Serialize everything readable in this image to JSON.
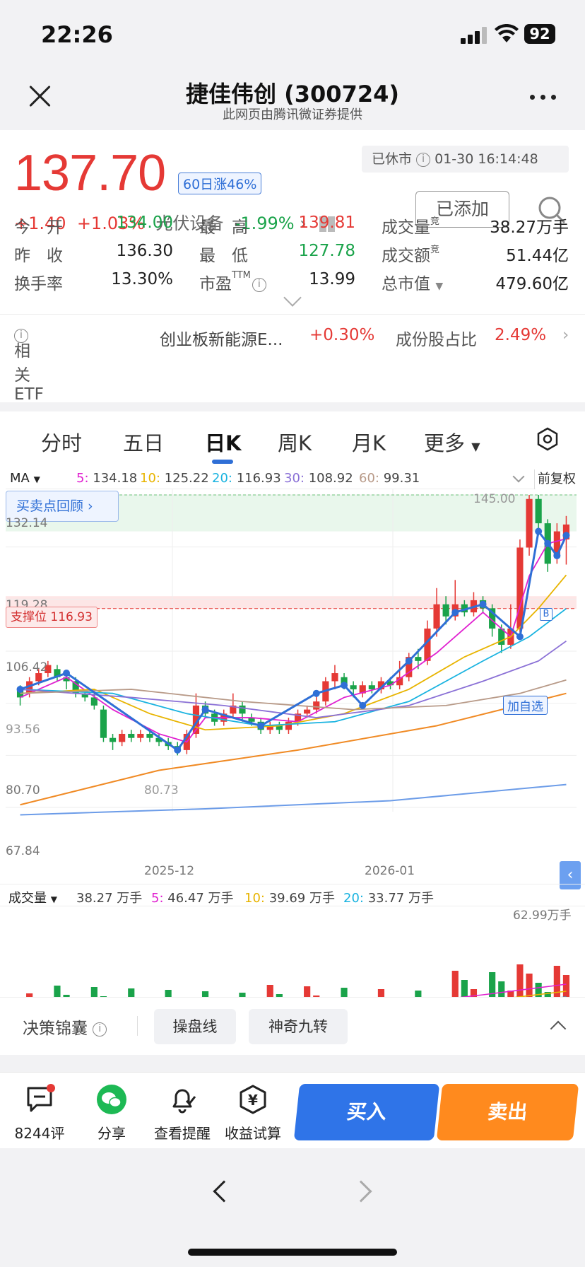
{
  "status": {
    "time": "22:26",
    "battery": "92"
  },
  "nav": {
    "title": "捷佳伟创 (300724)",
    "subtitle": "此网页由腾讯微证券提供"
  },
  "quote": {
    "price": "137.70",
    "badge": "60日涨46%",
    "market_status": "已休市",
    "market_time": "01-30 16:14:48",
    "added_label": "已添加",
    "change": "+1.40",
    "change_pct": "+1.03%",
    "sector": "光伏设备",
    "sector_pct": "-1.99%",
    "stats": {
      "open_label": "今　开",
      "open": "134.00",
      "high_label": "最　高",
      "high": "139.81",
      "volume_label": "成交量",
      "volume": "38.27万手",
      "prev_label": "昨　收",
      "prev": "136.30",
      "low_label": "最　低",
      "low": "127.78",
      "amount_label": "成交额",
      "amount": "51.44亿",
      "turnover_label": "换手率",
      "turnover": "13.30%",
      "pe_label": "市盈",
      "pe_sup": "TTM",
      "pe": "13.99",
      "mcap_label": "总市值",
      "mcap": "479.60亿",
      "jing": "竞"
    },
    "etf": {
      "label": "相关ETF",
      "name": "创业板新能源E...",
      "pct": "+0.30%",
      "share_label": "成份股占比",
      "share": "2.49%"
    }
  },
  "tabs": [
    "分时",
    "五日",
    "日K",
    "周K",
    "月K",
    "更多"
  ],
  "ma": {
    "label": "MA",
    "ma5": "134.18",
    "ma10": "125.22",
    "ma20": "116.93",
    "ma30": "108.92",
    "ma60": "99.31",
    "k5": "5:",
    "k10": "10:",
    "k20": "20:",
    "k30": "30:",
    "k60": "60:",
    "adjust": "前复权"
  },
  "review_label": "买卖点回顾",
  "chart_labels": {
    "y_top": "145.00",
    "y1": "132.14",
    "y2": "119.28",
    "support": "支撑位 116.93",
    "y3": "106.42",
    "y4": "93.56",
    "y5": "80.70",
    "y6": "67.84",
    "low_mark": "80.73",
    "x1": "2025-12",
    "x2": "2026-01",
    "add_watch": "加自选",
    "b_mark": "B"
  },
  "volume": {
    "label": "成交量",
    "current": "38.27 万手",
    "k5": "5:",
    "ma5": "46.47 万手",
    "k10": "10:",
    "ma10": "39.69 万手",
    "k20": "20:",
    "ma20": "33.77 万手",
    "max": "62.99万手"
  },
  "decision": {
    "label": "决策锦囊",
    "chips": [
      "操盘线",
      "神奇九转"
    ]
  },
  "actions": {
    "comments": "8244评",
    "share": "分享",
    "alert": "查看提醒",
    "calc": "收益试算",
    "buy": "买入",
    "sell": "卖出"
  },
  "colors": {
    "up": "#e53935",
    "down": "#1aa34a",
    "ma5": "#e020d0",
    "ma10": "#e8b400",
    "ma20": "#19b3e0",
    "ma30": "#8a70d6",
    "ma60": "#b89a88",
    "ma120": "#f08a24",
    "ma250": "#6c9ce8",
    "trend": "#2f6fd6",
    "buy": "#2f74e8",
    "sell": "#ff8a1e"
  }
}
